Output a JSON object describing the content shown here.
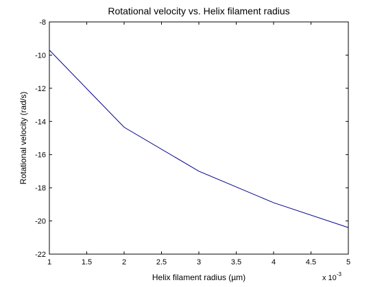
{
  "chart_data": {
    "type": "line",
    "title": "Rotational velocity vs. Helix filament radius",
    "xlabel": "Helix filament radius (µm)",
    "ylabel": "Rotational velocity (rad/s)",
    "x_multiplier": {
      "base": "x 10",
      "exponent": "-3"
    },
    "xlim": [
      1,
      5
    ],
    "ylim": [
      -22,
      -8
    ],
    "x_ticks": [
      1,
      1.5,
      2,
      2.5,
      3,
      3.5,
      4,
      4.5,
      5
    ],
    "x_tick_labels": [
      "1",
      "1.5",
      "2",
      "2.5",
      "3",
      "3.5",
      "4",
      "4.5",
      "5"
    ],
    "y_ticks": [
      -22,
      -20,
      -18,
      -16,
      -14,
      -12,
      -10,
      -8
    ],
    "y_tick_labels": [
      "-22",
      "-20",
      "-18",
      "-16",
      "-14",
      "-12",
      "-10",
      "-8"
    ],
    "grid": false,
    "legend": "none",
    "series": [
      {
        "color": "#00008b",
        "x": [
          1,
          2,
          3,
          4,
          5
        ],
        "y": [
          -9.7,
          -14.35,
          -17.0,
          -18.9,
          -20.4
        ]
      }
    ]
  }
}
